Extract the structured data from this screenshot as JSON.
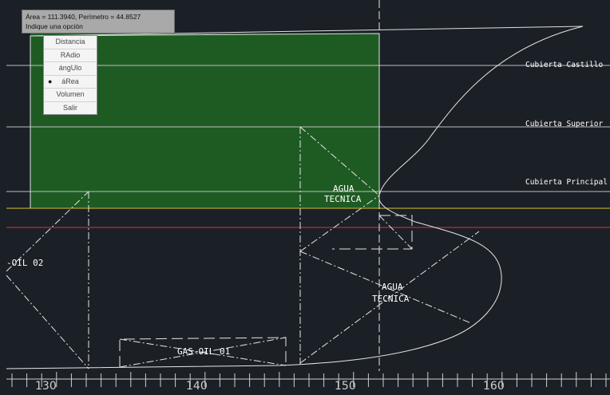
{
  "tooltip": {
    "line1": "Área = 111.3940, Perímetro = 44.8527",
    "line2": "Indique una opción"
  },
  "menu": {
    "items": [
      {
        "label": "Distancia",
        "selected": false
      },
      {
        "label": "RAdio",
        "selected": false
      },
      {
        "label": "ángUlo",
        "selected": false
      },
      {
        "label": "áRea",
        "selected": true
      },
      {
        "label": "Volumen",
        "selected": false
      },
      {
        "label": "Salir",
        "selected": false
      }
    ]
  },
  "labels": {
    "cubierta_castillo": "Cubierta Castillo",
    "cubierta_superior": "Cubierta Superior",
    "cubierta_principal": "Cubierta Principal",
    "agua_tecnica_1a": "AGUA",
    "agua_tecnica_1b": "TECNICA",
    "agua_tecnica_2a": "AGUA",
    "agua_tecnica_2b": "TECNICA",
    "gas_oil_01": "GAS-OIL 01",
    "gas_oil_02": "-OIL 02"
  },
  "scale": {
    "labels": [
      "130",
      "140",
      "150",
      "160"
    ]
  },
  "colors": {
    "background": "#1b1f26",
    "area_fill": "#1e5b23",
    "deck_line": "#c8c8c8",
    "yellow_line": "#b3a52b",
    "red_line": "#b0303a"
  }
}
